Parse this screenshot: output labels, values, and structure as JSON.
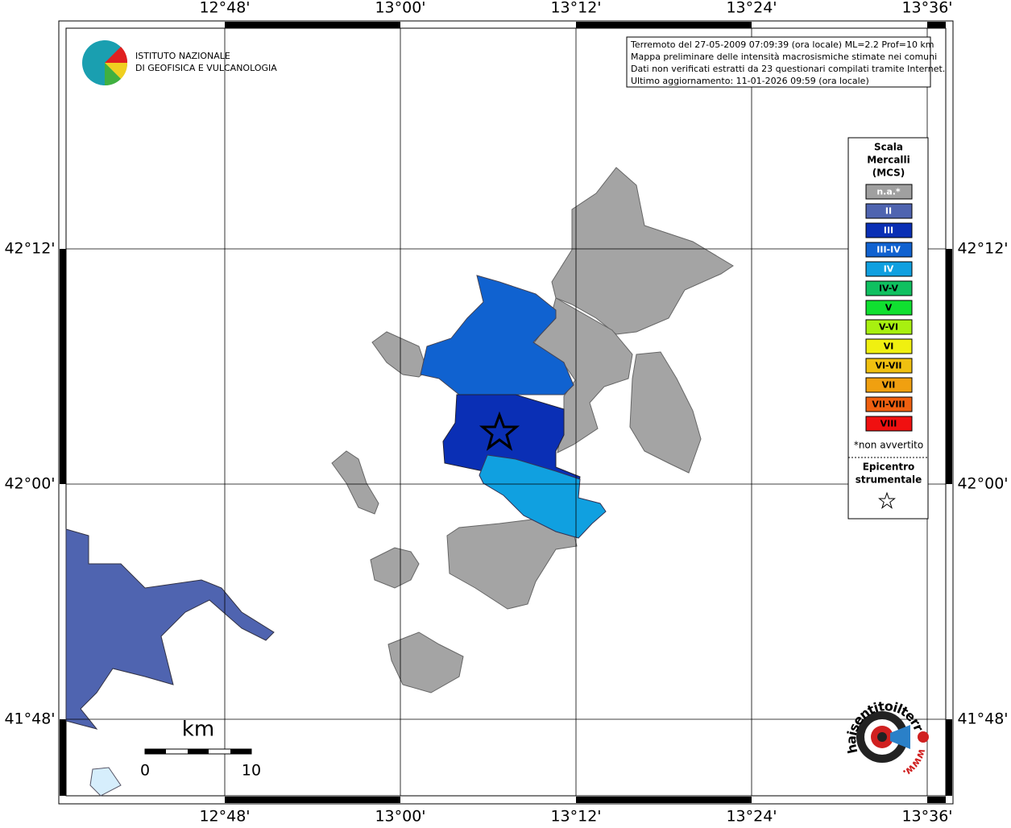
{
  "header": {
    "institute": [
      "ISTITUTO NAZIONALE",
      "DI GEOFISICA E VULCANOLOGIA"
    ],
    "info": [
      "Terremoto del 27-05-2009 07:09:39 (ora locale) ML=2.2 Prof=10 km",
      "Mappa preliminare delle intensità macrosismiche stimate nei comuni",
      "Dati non verificati estratti da 23 questionari compilati tramite Internet.",
      "Ultimo aggiornamento: 11-01-2026 09:59 (ora locale)"
    ]
  },
  "axes": {
    "longitude": [
      "12°48'",
      "13°00'",
      "13°12'",
      "13°24'",
      "13°36'"
    ],
    "latitude": [
      "42°12'",
      "42°00'",
      "41°48'"
    ]
  },
  "legend": {
    "title": [
      "Scala",
      "Mercalli",
      "(MCS)"
    ],
    "levels": [
      {
        "label": "n.a.*",
        "color": "#a0a0a0"
      },
      {
        "label": "II",
        "color": "#4f64b0"
      },
      {
        "label": "III",
        "color": "#0a2fb5"
      },
      {
        "label": "III-IV",
        "color": "#1062d0"
      },
      {
        "label": "IV",
        "color": "#10a0e0"
      },
      {
        "label": "IV-V",
        "color": "#10c060"
      },
      {
        "label": "V",
        "color": "#10e030"
      },
      {
        "label": "V-VI",
        "color": "#a8f010"
      },
      {
        "label": "VI",
        "color": "#f0f010"
      },
      {
        "label": "VI-VII",
        "color": "#f0c010"
      },
      {
        "label": "VII",
        "color": "#f0a010"
      },
      {
        "label": "VII-VIII",
        "color": "#f06010"
      },
      {
        "label": "VIII",
        "color": "#f01010"
      }
    ],
    "note": "*non avvertito",
    "epicenter": [
      "Epicentro",
      "strumentale"
    ]
  },
  "scale": {
    "unit": "km",
    "labels": [
      "0",
      "10"
    ]
  },
  "footer_logo": {
    "text": "haisentitoilterremoto.it",
    "web": "www."
  }
}
